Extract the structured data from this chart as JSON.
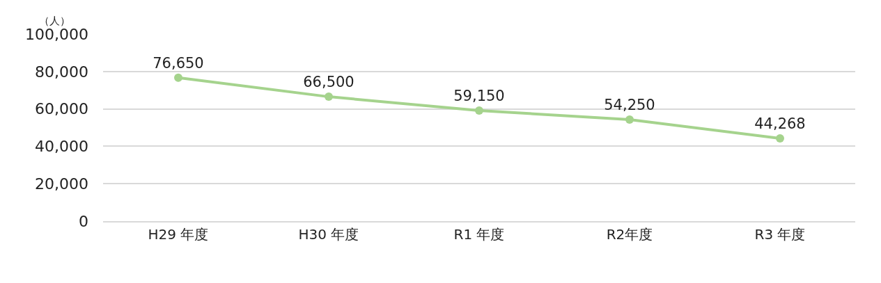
{
  "chart_data": {
    "type": "line",
    "ylabel": "（人）",
    "categories": [
      "H29 年度",
      "H30 年度",
      "R1 年度",
      "R2年度",
      "R3 年度"
    ],
    "series": [
      {
        "color": "#a5d38d",
        "values": [
          76650,
          66500,
          59150,
          54250,
          44268
        ],
        "value_labels": [
          "76,650",
          "66,500",
          "59,150",
          "54,250",
          "44,268"
        ]
      }
    ],
    "ylim": [
      0,
      100000
    ],
    "yticks": [
      0,
      {
        "value": 20000,
        "label": "20,000"
      },
      {
        "value": 40000,
        "label": "40,000"
      },
      {
        "value": 60000,
        "label": "60,000"
      },
      {
        "value": 80000,
        "label": "80,000"
      },
      {
        "value": 100000,
        "label": "100,000"
      }
    ],
    "grid": "y",
    "marker": "circle",
    "line_style": "solid"
  }
}
